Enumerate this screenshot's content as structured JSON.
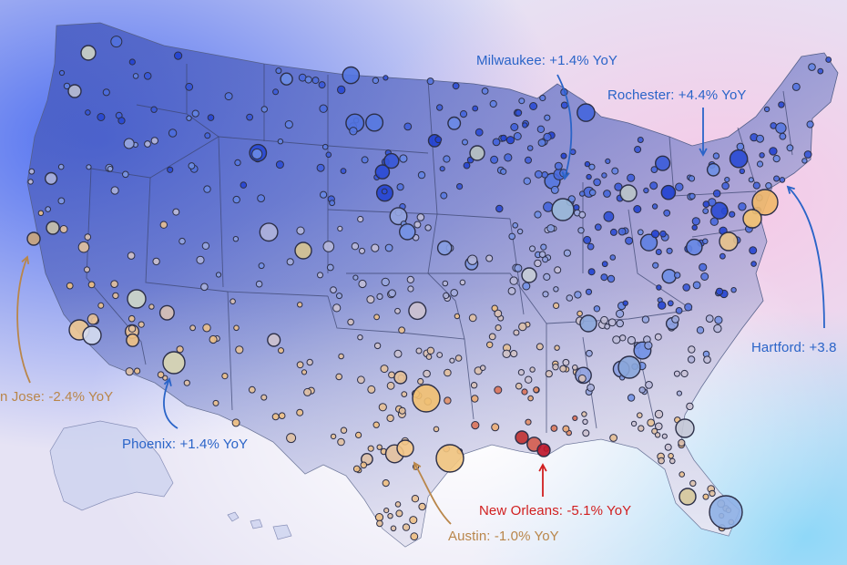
{
  "map": {
    "legend_colors": {
      "strong_growth": "#1f3fd1",
      "growth": "#6e8fe6",
      "neutral": "#c9c2d6",
      "decline": "#f0c080",
      "strong_decline": "#c0162a"
    }
  },
  "callouts": [
    {
      "id": "milwaukee",
      "text": "Milwaukee: +1.4% YoY",
      "color": "#2a64c8"
    },
    {
      "id": "rochester",
      "text": "Rochester: +4.4% YoY",
      "color": "#2a64c8"
    },
    {
      "id": "hartford",
      "text": "Hartford: +3.8",
      "color": "#2a64c8"
    },
    {
      "id": "san-jose",
      "text": "n Jose: -2.4% YoY",
      "color": "#b9864a"
    },
    {
      "id": "phoenix",
      "text": "Phoenix: +1.4% YoY",
      "color": "#2a64c8"
    },
    {
      "id": "new-orleans",
      "text": "New Orleans: -5.1% YoY",
      "color": "#d11f1f"
    },
    {
      "id": "austin",
      "text": "Austin: -1.0% YoY",
      "color": "#b9864a"
    }
  ]
}
